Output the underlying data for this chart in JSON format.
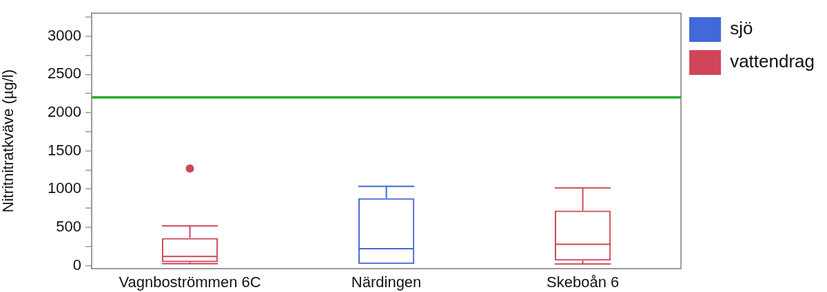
{
  "chart_data": {
    "type": "box",
    "ylabel": "Nitritnitratkväve (µg/l)",
    "categories": [
      "Vagnboströmmen 6C",
      "Närdingen",
      "Skeboån 6"
    ],
    "series": [
      {
        "name": "sjö",
        "color": "#4169d8",
        "boxes": [
          null,
          {
            "low": 20,
            "q1": 20,
            "median": 220,
            "q3": 880,
            "high": 1035
          },
          null
        ]
      },
      {
        "name": "vattendrag",
        "color": "#cf4658",
        "boxes": [
          {
            "low": 25,
            "q1": 45,
            "median": 120,
            "q3": 360,
            "high": 520,
            "outliers": [
              1270
            ]
          },
          null,
          {
            "low": 20,
            "q1": 65,
            "median": 280,
            "q3": 720,
            "high": 1015
          }
        ]
      }
    ],
    "ylim": [
      -40,
      3300
    ],
    "yticks": [
      0,
      {
        "value": 250,
        "label": null
      },
      500,
      {
        "value": 750,
        "label": null
      },
      1000,
      {
        "value": 1250,
        "label": null
      },
      1500,
      {
        "value": 1750,
        "label": null
      },
      2000,
      {
        "value": 2250,
        "label": null
      },
      2500,
      {
        "value": 2750,
        "label": null
      },
      3000,
      {
        "value": 3250,
        "label": null
      }
    ],
    "ref_lines": [
      {
        "axis": "y",
        "value": 2200,
        "color": "#22b02a"
      }
    ],
    "legend": "right"
  }
}
